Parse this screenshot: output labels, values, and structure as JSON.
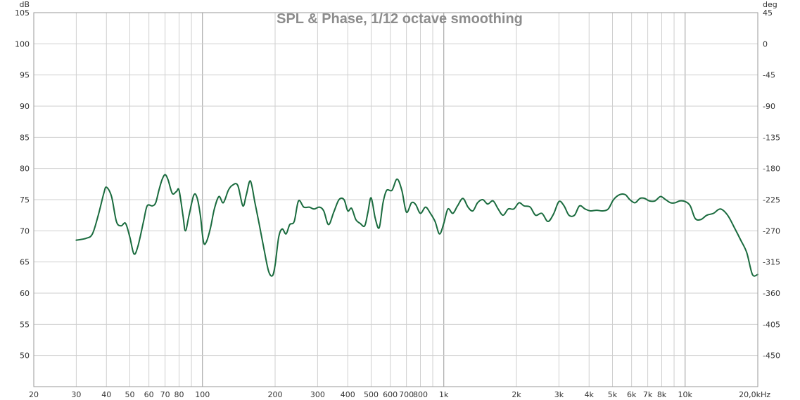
{
  "chart_data": {
    "type": "line",
    "title": "SPL & Phase, 1/12 octave smoothing",
    "ylabel": "dB",
    "y2label": "deg",
    "xscale": "log",
    "xlim": [
      20,
      20000
    ],
    "ylim": [
      45,
      105
    ],
    "y2lim": [
      -495,
      45
    ],
    "grid": true,
    "legend": "none",
    "colors": {
      "spl": "#1a6b3e",
      "grid": "#cfcfcf",
      "grid_major": "#9a9a9a",
      "axis": "#9a9a9a"
    },
    "x_ticks": [
      {
        "value": 20,
        "label": "20"
      },
      {
        "value": 30,
        "label": "30"
      },
      {
        "value": 40,
        "label": "40"
      },
      {
        "value": 50,
        "label": "50"
      },
      {
        "value": 60,
        "label": "60"
      },
      {
        "value": 70,
        "label": "70"
      },
      {
        "value": 80,
        "label": "80"
      },
      {
        "value": 100,
        "label": "100"
      },
      {
        "value": 200,
        "label": "200"
      },
      {
        "value": 300,
        "label": "300"
      },
      {
        "value": 400,
        "label": "400"
      },
      {
        "value": 500,
        "label": "500"
      },
      {
        "value": 600,
        "label": "600"
      },
      {
        "value": 700,
        "label": "700"
      },
      {
        "value": 800,
        "label": "800"
      },
      {
        "value": 1000,
        "label": "1k"
      },
      {
        "value": 2000,
        "label": "2k"
      },
      {
        "value": 3000,
        "label": "3k"
      },
      {
        "value": 4000,
        "label": "4k"
      },
      {
        "value": 5000,
        "label": "5k"
      },
      {
        "value": 6000,
        "label": "6k"
      },
      {
        "value": 7000,
        "label": "7k"
      },
      {
        "value": 8000,
        "label": "8k"
      },
      {
        "value": 10000,
        "label": "10k"
      },
      {
        "value": 20000,
        "label": "20,0kHz"
      }
    ],
    "y_ticks": [
      {
        "value": 105,
        "label": "105"
      },
      {
        "value": 100,
        "label": "100"
      },
      {
        "value": 95,
        "label": "95"
      },
      {
        "value": 90,
        "label": "90"
      },
      {
        "value": 85,
        "label": "85"
      },
      {
        "value": 80,
        "label": "80"
      },
      {
        "value": 75,
        "label": "75"
      },
      {
        "value": 70,
        "label": "70"
      },
      {
        "value": 65,
        "label": "65"
      },
      {
        "value": 60,
        "label": "60"
      },
      {
        "value": 55,
        "label": "55"
      },
      {
        "value": 50,
        "label": "50"
      }
    ],
    "y2_ticks": [
      {
        "value": 45,
        "label": "45"
      },
      {
        "value": 0,
        "label": "0"
      },
      {
        "value": -45,
        "label": "-45"
      },
      {
        "value": -90,
        "label": "-90"
      },
      {
        "value": -135,
        "label": "-135"
      },
      {
        "value": -180,
        "label": "-180"
      },
      {
        "value": -225,
        "label": "-225"
      },
      {
        "value": -270,
        "label": "-270"
      },
      {
        "value": -315,
        "label": "-315"
      },
      {
        "value": -360,
        "label": "-360"
      },
      {
        "value": -405,
        "label": "-405"
      },
      {
        "value": -450,
        "label": "-450"
      }
    ],
    "series": [
      {
        "x": [
          30,
          33,
          35,
          37,
          39,
          40,
          42,
          44,
          46,
          48,
          50,
          52,
          54,
          57,
          59,
          62,
          64,
          66,
          68,
          70,
          72,
          75,
          78,
          80,
          83,
          85,
          88,
          92,
          95,
          98,
          101,
          104,
          108,
          112,
          117,
          122,
          128,
          133,
          140,
          147,
          152,
          158,
          165,
          172,
          180,
          188,
          195,
          200,
          207,
          214,
          222,
          230,
          240,
          250,
          263,
          277,
          290,
          305,
          318,
          333,
          350,
          368,
          386,
          400,
          415,
          432,
          450,
          470,
          485,
          500,
          520,
          540,
          560,
          580,
          610,
          640,
          670,
          700,
          735,
          765,
          800,
          840,
          880,
          920,
          960,
          1000,
          1040,
          1090,
          1140,
          1200,
          1260,
          1320,
          1380,
          1450,
          1520,
          1600,
          1680,
          1760,
          1850,
          1950,
          2050,
          2150,
          2280,
          2400,
          2550,
          2700,
          2850,
          3000,
          3150,
          3300,
          3480,
          3650,
          3850,
          4050,
          4300,
          4550,
          4800,
          5050,
          5350,
          5650,
          5900,
          6200,
          6500,
          6800,
          7100,
          7500,
          7900,
          8300,
          8700,
          9100,
          9500,
          10000,
          10500,
          11000,
          11600,
          12300,
          13100,
          14000,
          15000,
          16000,
          17000,
          18000,
          19000,
          20000
        ],
        "values": [
          68.5,
          68.8,
          69.5,
          72.5,
          76.0,
          77.0,
          75.5,
          71.5,
          70.8,
          71.2,
          69.0,
          66.3,
          67.5,
          71.5,
          74.0,
          74.0,
          74.5,
          76.5,
          78.2,
          79.0,
          78.2,
          76.0,
          76.3,
          76.5,
          72.5,
          70.0,
          72.5,
          75.7,
          75.3,
          72.5,
          68.2,
          68.3,
          70.5,
          73.5,
          75.5,
          74.5,
          76.5,
          77.3,
          77.3,
          74.0,
          75.8,
          78.0,
          74.5,
          71.0,
          67.0,
          63.5,
          62.8,
          64.5,
          69.0,
          70.3,
          69.5,
          71.0,
          71.5,
          74.8,
          73.8,
          73.8,
          73.5,
          73.8,
          73.2,
          71.0,
          73.0,
          75.0,
          75.0,
          73.2,
          73.6,
          71.8,
          71.2,
          70.8,
          73.0,
          75.3,
          72.0,
          70.5,
          74.5,
          76.5,
          76.5,
          78.3,
          76.5,
          73.0,
          74.5,
          74.2,
          72.8,
          73.8,
          72.8,
          71.5,
          69.5,
          71.2,
          73.5,
          72.8,
          74.0,
          75.2,
          73.8,
          73.2,
          74.5,
          75.0,
          74.3,
          74.8,
          73.5,
          72.5,
          73.5,
          73.5,
          74.5,
          74.0,
          73.8,
          72.5,
          72.8,
          71.5,
          72.7,
          74.7,
          74.0,
          72.5,
          72.5,
          74.0,
          73.5,
          73.2,
          73.3,
          73.2,
          73.5,
          75.0,
          75.8,
          75.8,
          75.0,
          74.5,
          75.2,
          75.2,
          74.8,
          74.8,
          75.5,
          75.0,
          74.5,
          74.5,
          74.8,
          74.7,
          74.0,
          72.0,
          71.8,
          72.5,
          72.8,
          73.5,
          72.5,
          70.5,
          68.5,
          66.5,
          63.0,
          63.0
        ]
      }
    ]
  }
}
